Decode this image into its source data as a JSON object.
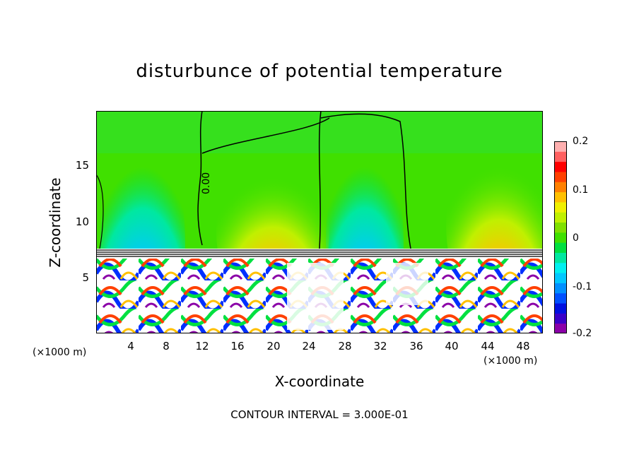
{
  "chart_data": {
    "type": "heatmap",
    "title": "disturbunce of potential temperature",
    "xlabel": "X-coordinate",
    "ylabel": "Z-coordinate",
    "x_unit": "(×1000 m)",
    "y_unit": "(×1000 m)",
    "xlim": [
      0,
      50
    ],
    "ylim": [
      0,
      20
    ],
    "x_ticks": [
      "4",
      "8",
      "12",
      "16",
      "20",
      "24",
      "28",
      "32",
      "36",
      "40",
      "44",
      "48"
    ],
    "y_ticks": [
      "5",
      "10",
      "15"
    ],
    "colorbar": {
      "range": [
        -0.2,
        0.2
      ],
      "ticks": [
        "0.2",
        "0.1",
        "0",
        "-0.1",
        "-0.2"
      ],
      "colors": [
        "#8b00a8",
        "#3a00c8",
        "#0010e0",
        "#0050ff",
        "#0090ff",
        "#00c8ff",
        "#00f0f0",
        "#00e8a0",
        "#00e040",
        "#40e000",
        "#80e000",
        "#c0f000",
        "#f0f000",
        "#ffc000",
        "#ff8000",
        "#ff4000",
        "#ff0000",
        "#ff6060",
        "#ffb0b0"
      ]
    },
    "contour_labels": [
      "0.00"
    ],
    "contour_interval_text": "CONTOUR INTERVAL = 3.000E-01"
  }
}
